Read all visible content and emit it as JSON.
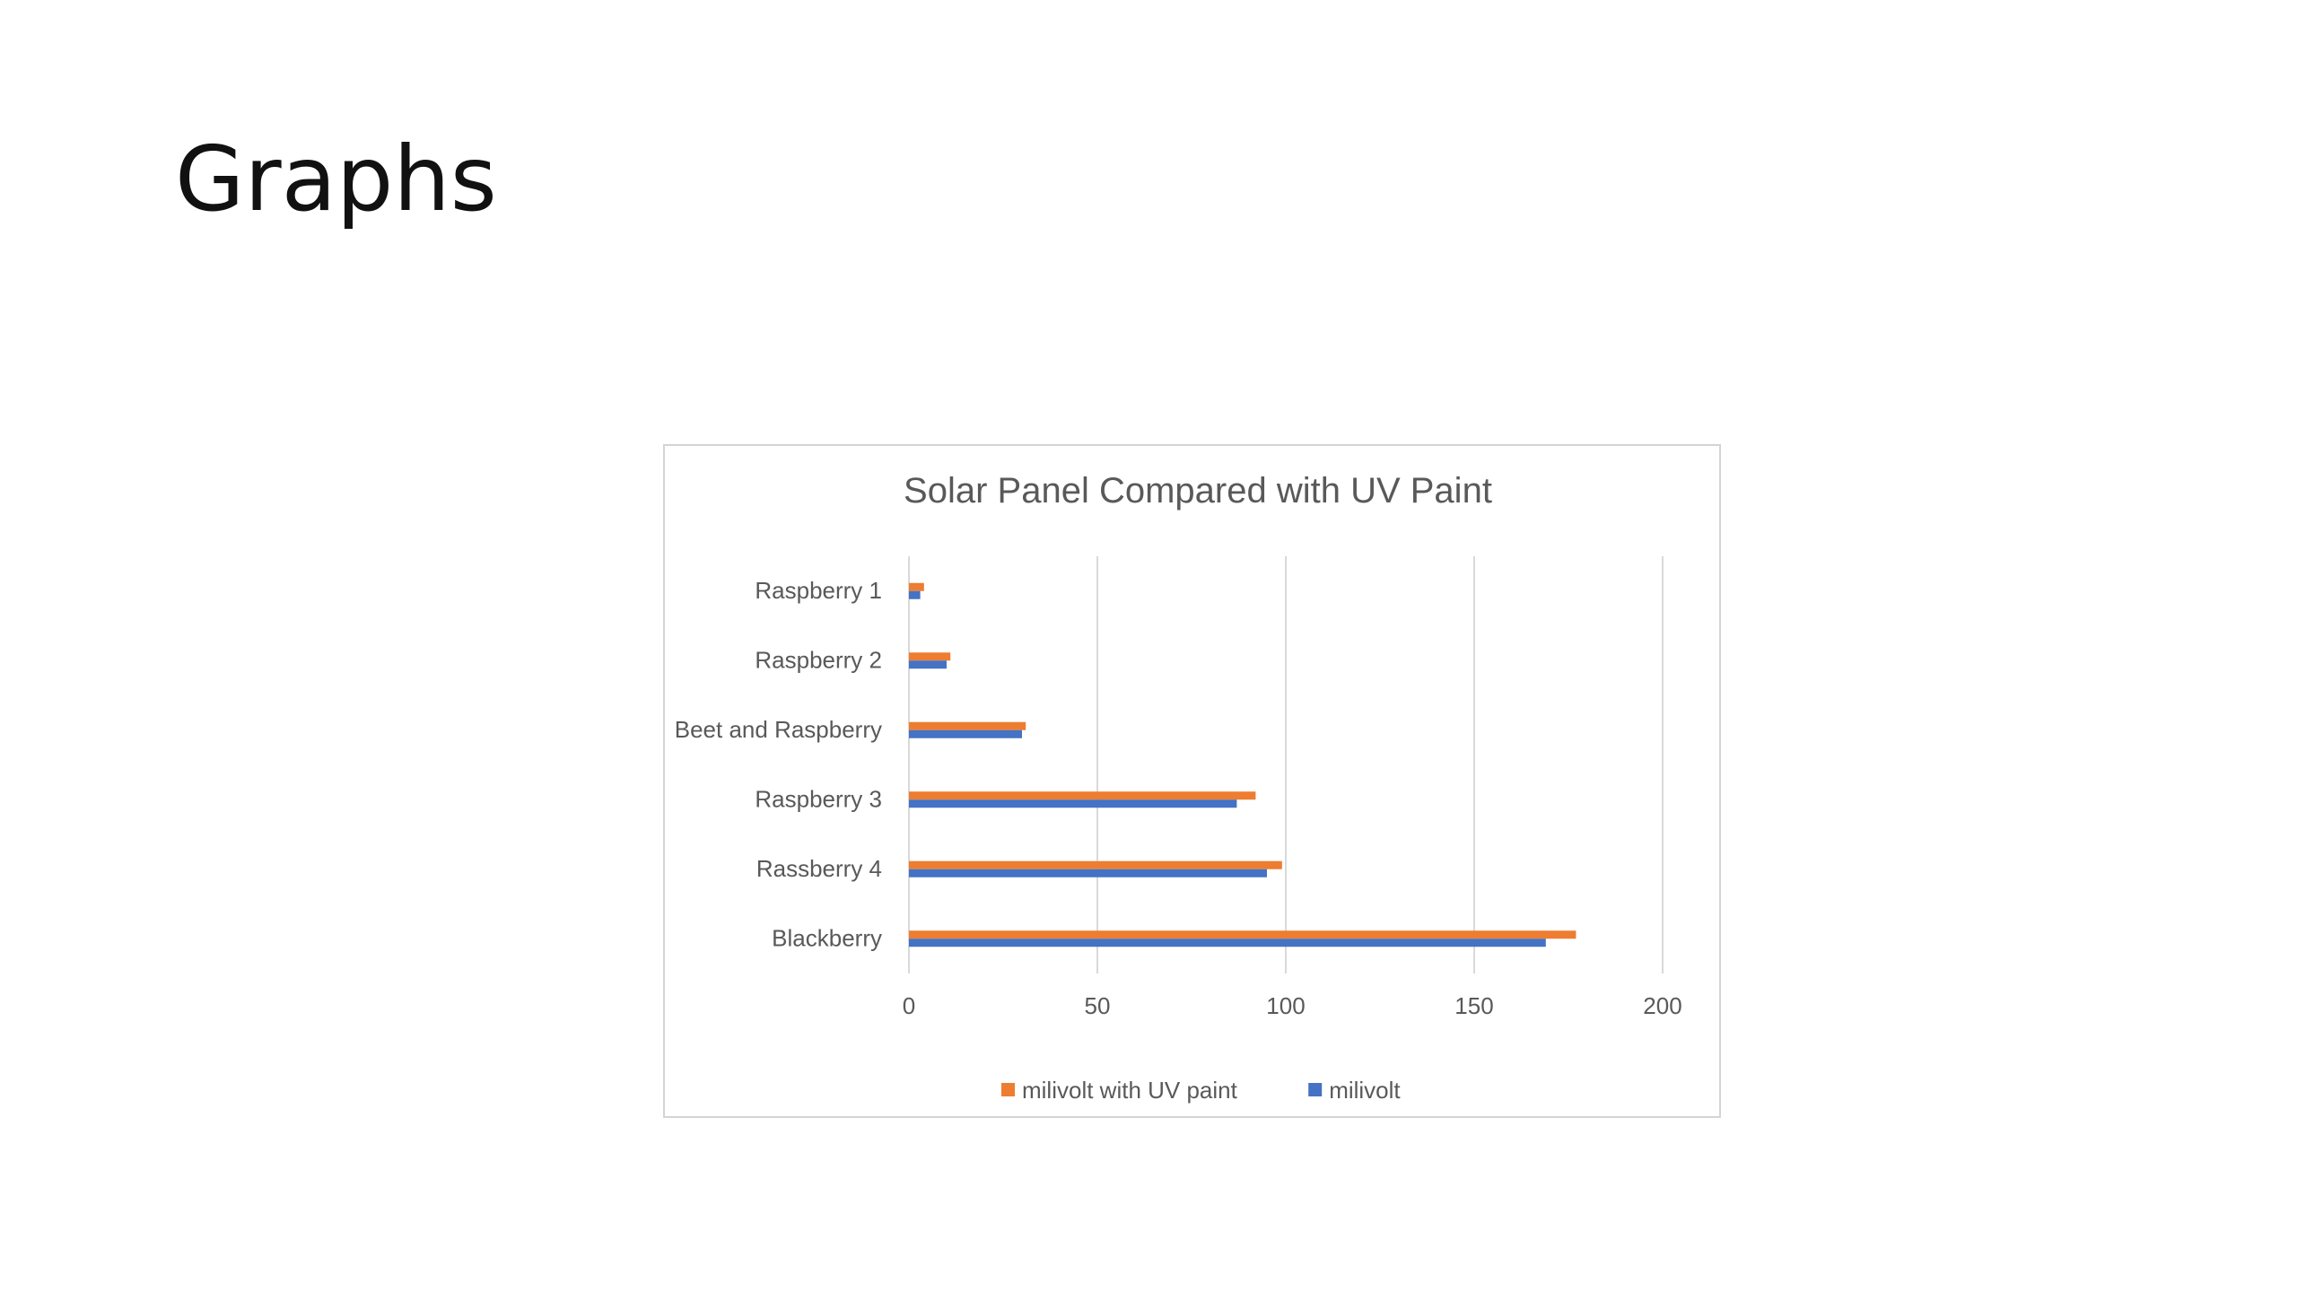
{
  "slide": {
    "title": "Graphs"
  },
  "colors": {
    "uv": "#ED7D31",
    "base": "#4472C4",
    "grid": "#d9d9d9",
    "text": "#595959"
  },
  "chart_data": {
    "type": "bar",
    "orientation": "horizontal",
    "title": "Solar Panel Compared with UV Paint",
    "xlabel": "",
    "ylabel": "",
    "categories": [
      "Raspberry 1",
      "Raspberry 2",
      "Beet and Raspberry",
      "Raspberry 3",
      "Rassberry 4",
      "Blackberry"
    ],
    "series": [
      {
        "name": "milivolt with UV paint",
        "color": "#ED7D31",
        "values": [
          4,
          11,
          31,
          92,
          99,
          177
        ]
      },
      {
        "name": "milivolt",
        "color": "#4472C4",
        "values": [
          3,
          10,
          30,
          87,
          95,
          169
        ]
      }
    ],
    "xlim": [
      0,
      200
    ],
    "xticks": [
      0,
      50,
      100,
      150,
      200
    ],
    "grid": "vertical",
    "legend": "bottom"
  }
}
